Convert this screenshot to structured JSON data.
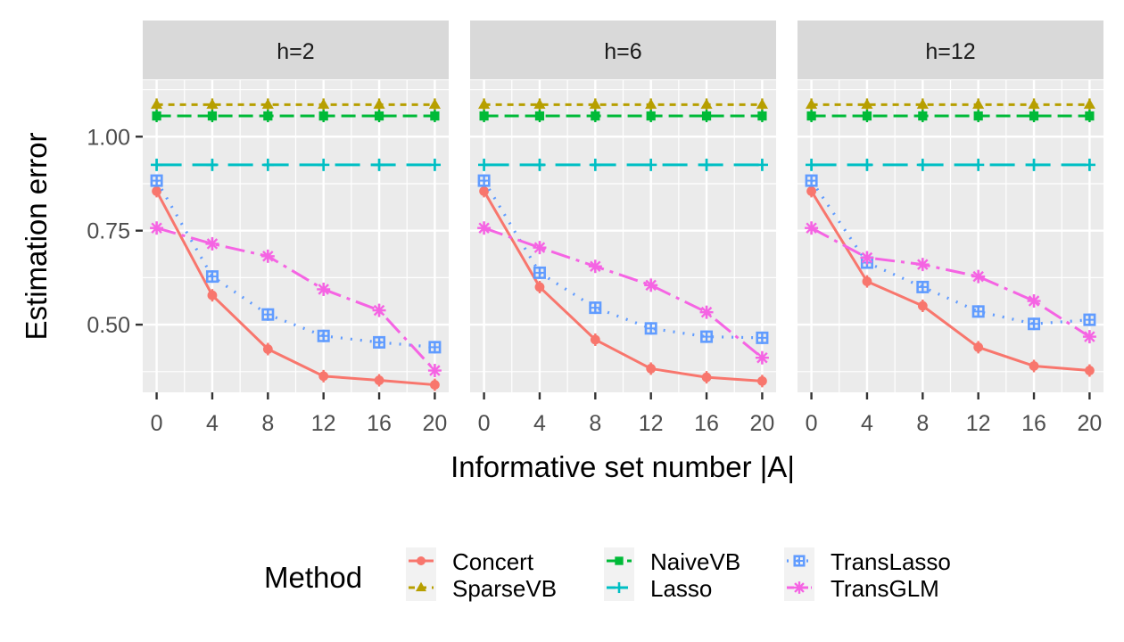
{
  "chart_data": {
    "type": "line",
    "xlabel": "Informative set number |A|",
    "ylabel": "Estimation error",
    "x": [
      0,
      4,
      8,
      12,
      16,
      20
    ],
    "x_ticks": [
      "0",
      "4",
      "8",
      "12",
      "16",
      "20"
    ],
    "y_ticks": [
      "0.50",
      "0.75",
      "1.00"
    ],
    "y_tick_values": [
      0.5,
      0.75,
      1.0
    ],
    "ylim": [
      0.32,
      1.15
    ],
    "legend_title": "Method",
    "legend_position": "bottom",
    "colors": {
      "Concert": "#F8766D",
      "SparseVB": "#B79F00",
      "NaiveVB": "#00BA38",
      "Lasso": "#00BFC4",
      "TransLasso": "#619CFF",
      "TransGLM": "#F564E3"
    },
    "legend_entries": [
      "Concert",
      "SparseVB",
      "NaiveVB",
      "Lasso",
      "TransLasso",
      "TransGLM"
    ],
    "panels": [
      {
        "label": "h=2",
        "series": [
          {
            "name": "Concert",
            "values": [
              0.855,
              0.578,
              0.435,
              0.363,
              0.352,
              0.34
            ]
          },
          {
            "name": "SparseVB",
            "values": [
              1.085,
              1.085,
              1.085,
              1.085,
              1.085,
              1.085
            ]
          },
          {
            "name": "NaiveVB",
            "values": [
              1.055,
              1.055,
              1.055,
              1.055,
              1.055,
              1.055
            ]
          },
          {
            "name": "Lasso",
            "values": [
              0.925,
              0.925,
              0.925,
              0.925,
              0.925,
              0.925
            ]
          },
          {
            "name": "TransLasso",
            "values": [
              0.883,
              0.628,
              0.527,
              0.47,
              0.453,
              0.44
            ]
          },
          {
            "name": "TransGLM",
            "values": [
              0.757,
              0.715,
              0.682,
              0.594,
              0.538,
              0.378
            ]
          }
        ]
      },
      {
        "label": "h=6",
        "series": [
          {
            "name": "Concert",
            "values": [
              0.855,
              0.6,
              0.46,
              0.383,
              0.36,
              0.35
            ]
          },
          {
            "name": "SparseVB",
            "values": [
              1.085,
              1.085,
              1.085,
              1.085,
              1.085,
              1.085
            ]
          },
          {
            "name": "NaiveVB",
            "values": [
              1.055,
              1.055,
              1.055,
              1.055,
              1.055,
              1.055
            ]
          },
          {
            "name": "Lasso",
            "values": [
              0.925,
              0.925,
              0.925,
              0.925,
              0.925,
              0.925
            ]
          },
          {
            "name": "TransLasso",
            "values": [
              0.883,
              0.638,
              0.545,
              0.49,
              0.468,
              0.465
            ]
          },
          {
            "name": "TransGLM",
            "values": [
              0.757,
              0.705,
              0.655,
              0.605,
              0.533,
              0.412
            ]
          }
        ]
      },
      {
        "label": "h=12",
        "series": [
          {
            "name": "Concert",
            "values": [
              0.855,
              0.615,
              0.55,
              0.44,
              0.39,
              0.378
            ]
          },
          {
            "name": "SparseVB",
            "values": [
              1.085,
              1.085,
              1.085,
              1.085,
              1.085,
              1.085
            ]
          },
          {
            "name": "NaiveVB",
            "values": [
              1.055,
              1.055,
              1.055,
              1.055,
              1.055,
              1.055
            ]
          },
          {
            "name": "Lasso",
            "values": [
              0.925,
              0.925,
              0.925,
              0.925,
              0.925,
              0.925
            ]
          },
          {
            "name": "TransLasso",
            "values": [
              0.883,
              0.665,
              0.6,
              0.535,
              0.502,
              0.513
            ]
          },
          {
            "name": "TransGLM",
            "values": [
              0.757,
              0.678,
              0.66,
              0.628,
              0.563,
              0.468
            ]
          }
        ]
      }
    ]
  }
}
